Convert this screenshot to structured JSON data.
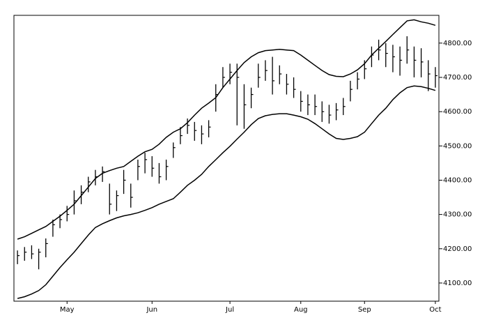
{
  "chart_data": {
    "type": "ohlc",
    "color": "#000000",
    "categories": [
      null,
      null,
      null,
      null,
      null,
      null,
      null,
      "May",
      null,
      null,
      null,
      null,
      null,
      null,
      null,
      null,
      null,
      null,
      null,
      "Jun",
      null,
      null,
      null,
      null,
      null,
      null,
      null,
      null,
      null,
      null,
      "Jul",
      null,
      null,
      null,
      null,
      null,
      null,
      null,
      null,
      null,
      "Aug",
      null,
      null,
      null,
      null,
      null,
      null,
      null,
      null,
      "Sep",
      null,
      null,
      null,
      null,
      null,
      null,
      null,
      null,
      null,
      "Oct"
    ],
    "high": [
      4195,
      4205,
      4210,
      4200,
      4230,
      4285,
      4300,
      4325,
      4370,
      4385,
      4410,
      4430,
      4440,
      4390,
      4370,
      4430,
      4390,
      4460,
      4480,
      4470,
      4450,
      4460,
      4510,
      4555,
      4580,
      4570,
      4560,
      4575,
      4680,
      4730,
      4740,
      4740,
      4680,
      4670,
      4740,
      4750,
      4760,
      4735,
      4710,
      4700,
      4660,
      4650,
      4650,
      4630,
      4620,
      4625,
      4640,
      4690,
      4715,
      4750,
      4790,
      4810,
      4800,
      4795,
      4790,
      4820,
      4790,
      4785,
      4750,
      4730
    ],
    "low": [
      4155,
      4165,
      4170,
      4140,
      4175,
      4235,
      4260,
      4280,
      4300,
      4330,
      4365,
      4385,
      4395,
      4300,
      4310,
      4360,
      4320,
      4400,
      4420,
      4410,
      4390,
      4400,
      4465,
      4505,
      4535,
      4515,
      4505,
      4525,
      4600,
      4670,
      4680,
      4560,
      4550,
      4610,
      4670,
      4690,
      4650,
      4680,
      4650,
      4640,
      4600,
      4590,
      4590,
      4570,
      4565,
      4575,
      4590,
      4630,
      4665,
      4695,
      4730,
      4750,
      4730,
      4715,
      4705,
      4740,
      4700,
      4700,
      4660,
      4670
    ],
    "close": [
      4180,
      4190,
      4185,
      4190,
      4215,
      4270,
      4285,
      4300,
      4340,
      4365,
      4395,
      4410,
      4425,
      4330,
      4355,
      4400,
      4350,
      4440,
      4460,
      4435,
      4410,
      4440,
      4495,
      4530,
      4560,
      4545,
      4535,
      4555,
      4650,
      4700,
      4715,
      4700,
      4620,
      4650,
      4700,
      4720,
      4690,
      4710,
      4680,
      4665,
      4630,
      4620,
      4615,
      4600,
      4590,
      4605,
      4615,
      4665,
      4695,
      4725,
      4765,
      4780,
      4770,
      4760,
      4750,
      4780,
      4750,
      4745,
      4710,
      4705
    ],
    "upper_band": [
      4228,
      4235,
      4245,
      4255,
      4265,
      4280,
      4295,
      4312,
      4330,
      4355,
      4380,
      4405,
      4420,
      4428,
      4435,
      4440,
      4455,
      4470,
      4483,
      4490,
      4505,
      4525,
      4540,
      4550,
      4568,
      4590,
      4610,
      4625,
      4641,
      4670,
      4695,
      4720,
      4743,
      4760,
      4772,
      4778,
      4780,
      4782,
      4780,
      4778,
      4765,
      4750,
      4735,
      4720,
      4708,
      4703,
      4702,
      4710,
      4722,
      4740,
      4765,
      4785,
      4805,
      4825,
      4845,
      4865,
      4868,
      4862,
      4858,
      4852
    ],
    "lower_band": [
      4055,
      4060,
      4068,
      4078,
      4095,
      4120,
      4145,
      4168,
      4190,
      4215,
      4240,
      4262,
      4273,
      4282,
      4290,
      4296,
      4300,
      4305,
      4312,
      4320,
      4330,
      4338,
      4346,
      4365,
      4385,
      4400,
      4417,
      4440,
      4460,
      4480,
      4499,
      4520,
      4540,
      4562,
      4580,
      4588,
      4592,
      4594,
      4594,
      4590,
      4585,
      4578,
      4565,
      4550,
      4535,
      4522,
      4519,
      4522,
      4527,
      4540,
      4565,
      4590,
      4610,
      4635,
      4655,
      4670,
      4675,
      4673,
      4668,
      4662
    ],
    "ylim": [
      4047,
      4881
    ],
    "yticks": [
      {
        "value": 4100,
        "label": "4100.00"
      },
      {
        "value": 4200,
        "label": "4200.00"
      },
      {
        "value": 4300,
        "label": "4300.00"
      },
      {
        "value": 4400,
        "label": "4400.00"
      },
      {
        "value": 4500,
        "label": "4500.00"
      },
      {
        "value": 4600,
        "label": "4600.00"
      },
      {
        "value": 4700,
        "label": "4700.00"
      },
      {
        "value": 4800,
        "label": "4800.00"
      }
    ]
  }
}
